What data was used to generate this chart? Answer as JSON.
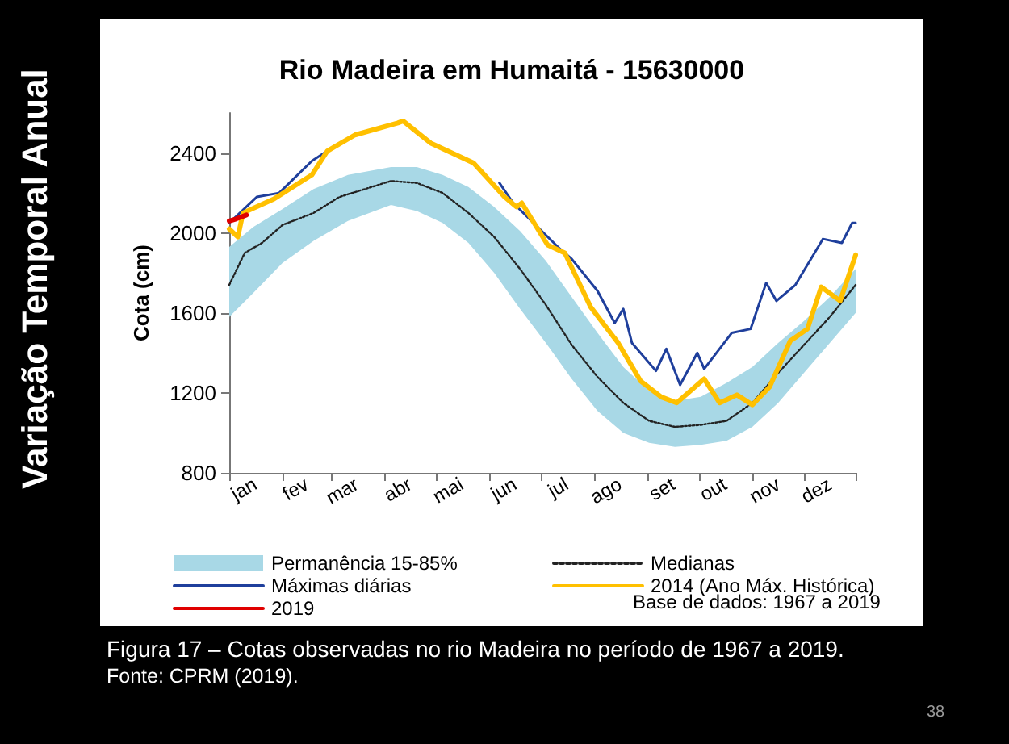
{
  "chart_data": {
    "type": "line",
    "title": "Rio Madeira em Humaitá - 15630000",
    "ylabel": "Cota (cm)",
    "xlim": [
      "--01-01",
      "--12-31"
    ],
    "xticks": [
      {
        "value": "--01-01",
        "label": null
      },
      {
        "value": "--01-16",
        "label": "jan"
      },
      {
        "value": "--02-01",
        "label": null
      },
      {
        "value": "--02-15",
        "label": "fev"
      },
      {
        "value": "--03-01",
        "label": null
      },
      {
        "value": "--03-16",
        "label": "mar"
      },
      {
        "value": "--04-01",
        "label": null
      },
      {
        "value": "--04-16",
        "label": "abr"
      },
      {
        "value": "--05-01",
        "label": null
      },
      {
        "value": "--05-16",
        "label": "mai"
      },
      {
        "value": "--06-01",
        "label": null
      },
      {
        "value": "--06-16",
        "label": "jun"
      },
      {
        "value": "--07-01",
        "label": null
      },
      {
        "value": "--07-16",
        "label": "jul"
      },
      {
        "value": "--08-01",
        "label": null
      },
      {
        "value": "--08-16",
        "label": "ago"
      },
      {
        "value": "--09-01",
        "label": null
      },
      {
        "value": "--09-16",
        "label": "set"
      },
      {
        "value": "--10-01",
        "label": null
      },
      {
        "value": "--10-16",
        "label": "out"
      },
      {
        "value": "--11-01",
        "label": null
      },
      {
        "value": "--11-16",
        "label": "nov"
      },
      {
        "value": "--12-01",
        "label": null
      },
      {
        "value": "--12-16",
        "label": "dez"
      },
      {
        "value": "--12-31",
        "label": null
      }
    ],
    "ylim": [
      800,
      2600
    ],
    "yticks": [
      800,
      1200,
      1600,
      2000,
      2400
    ],
    "grid": false,
    "legend": "bottom",
    "marker": "none",
    "series": [
      {
        "name": "Permanência 15-85%",
        "type": "area",
        "color": "#a8d8e6",
        "x": [
          "--01-01",
          "--01-15",
          "--02-01",
          "--02-19",
          "--03-11",
          "--04-05",
          "--04-20",
          "--05-05",
          "--05-20",
          "--06-04",
          "--06-19",
          "--07-04",
          "--07-19",
          "--08-03",
          "--08-18",
          "--09-02",
          "--09-17",
          "--10-02",
          "--10-17",
          "--11-01",
          "--11-16",
          "--12-01",
          "--12-16",
          "--12-31"
        ],
        "values": [
          null,
          null,
          null,
          null,
          null,
          null,
          null,
          null,
          null,
          null,
          null,
          null,
          null,
          null,
          null,
          null,
          null,
          null,
          null,
          null,
          null,
          null,
          null,
          null
        ],
        "lower": [
          1580,
          1700,
          1850,
          1960,
          2060,
          2140,
          2110,
          2050,
          1950,
          1800,
          1620,
          1450,
          1270,
          1110,
          1000,
          950,
          930,
          940,
          960,
          1030,
          1150,
          1300,
          1450,
          1600
        ],
        "upper": [
          1930,
          2030,
          2120,
          2220,
          2290,
          2330,
          2330,
          2290,
          2230,
          2130,
          2010,
          1860,
          1680,
          1500,
          1330,
          1210,
          1160,
          1180,
          1250,
          1330,
          1450,
          1560,
          1680,
          1820
        ]
      },
      {
        "name": "Medianas",
        "color": "#222222",
        "line_style": "dotted",
        "x": [
          "--01-01",
          "--01-10",
          "--01-20",
          "--02-01",
          "--02-19",
          "--03-06",
          "--03-21",
          "--04-05",
          "--04-20",
          "--05-05",
          "--05-20",
          "--06-04",
          "--06-19",
          "--07-04",
          "--07-19",
          "--08-03",
          "--08-18",
          "--09-02",
          "--09-17",
          "--10-02",
          "--10-17",
          "--11-01",
          "--11-16",
          "--12-01",
          "--12-16",
          "--12-31"
        ],
        "values": [
          1740,
          1900,
          1950,
          2040,
          2100,
          2180,
          2220,
          2260,
          2250,
          2200,
          2100,
          1980,
          1820,
          1640,
          1440,
          1280,
          1150,
          1060,
          1030,
          1040,
          1060,
          1150,
          1300,
          1440,
          1580,
          1740
        ]
      },
      {
        "name": "Máximas diárias",
        "color": "#1f3f9c",
        "line_style": "solid",
        "x": [
          "--01-01",
          "--01-17",
          "--01-30",
          "--02-18",
          "--02-27",
          "--03-15",
          "--04-09",
          "--04-12",
          "--04-28",
          "--05-23",
          "--06-07",
          "--06-15",
          "--07-11",
          "--07-19",
          "--08-03",
          "--08-13",
          "--08-18",
          "--08-23",
          "--09-06",
          "--09-12",
          "--09-20",
          "--09-30",
          "--10-04",
          "--10-20",
          "--10-31",
          "--11-09",
          "--11-15",
          "--11-26",
          "--12-12",
          "--12-23",
          "--12-29",
          "--12-31"
        ],
        "values": [
          2050,
          2180,
          2200,
          2360,
          2410,
          null,
          null,
          null,
          null,
          null,
          2250,
          2150,
          1930,
          1870,
          1710,
          1550,
          1620,
          1450,
          1310,
          1420,
          1240,
          1400,
          1320,
          1500,
          1520,
          1750,
          1660,
          1740,
          1970,
          1950,
          2050,
          2050
        ]
      },
      {
        "name": "2014 (Ano Máx. Histórica)",
        "color": "#ffc000",
        "line_style": "solid",
        "x": [
          "--01-01",
          "--01-06",
          "--01-09",
          "--01-27",
          "--02-18",
          "--02-27",
          "--03-15",
          "--04-09",
          "--04-12",
          "--04-28",
          "--05-23",
          "--06-10",
          "--06-17",
          "--06-20",
          "--07-05",
          "--07-15",
          "--07-30",
          "--08-15",
          "--08-28",
          "--09-09",
          "--09-18",
          "--10-04",
          "--10-13",
          "--10-23",
          "--11-01",
          "--11-11",
          "--11-23",
          "--12-03",
          "--12-11",
          "--12-22",
          "--12-31"
        ],
        "values": [
          2020,
          1980,
          2100,
          2170,
          2290,
          2410,
          2490,
          2550,
          2560,
          2450,
          2350,
          2180,
          2130,
          2150,
          1940,
          1900,
          1630,
          1450,
          1260,
          1180,
          1150,
          1270,
          1150,
          1190,
          1140,
          1230,
          1460,
          1520,
          1730,
          1660,
          1890
        ]
      },
      {
        "name": "2019",
        "color": "#e00000",
        "line_style": "solid",
        "x": [
          "--01-01",
          "--01-05",
          "--01-11"
        ],
        "values": [
          2060,
          2070,
          2090
        ]
      }
    ],
    "annotations": [
      "Variação Temporal Anual",
      "Base de dados: 1967 a 2019",
      "Figura 17 – Cotas observadas no rio Madeira no período de 1967 a 2019.",
      "Fonte: CPRM (2019).",
      "38"
    ]
  }
}
